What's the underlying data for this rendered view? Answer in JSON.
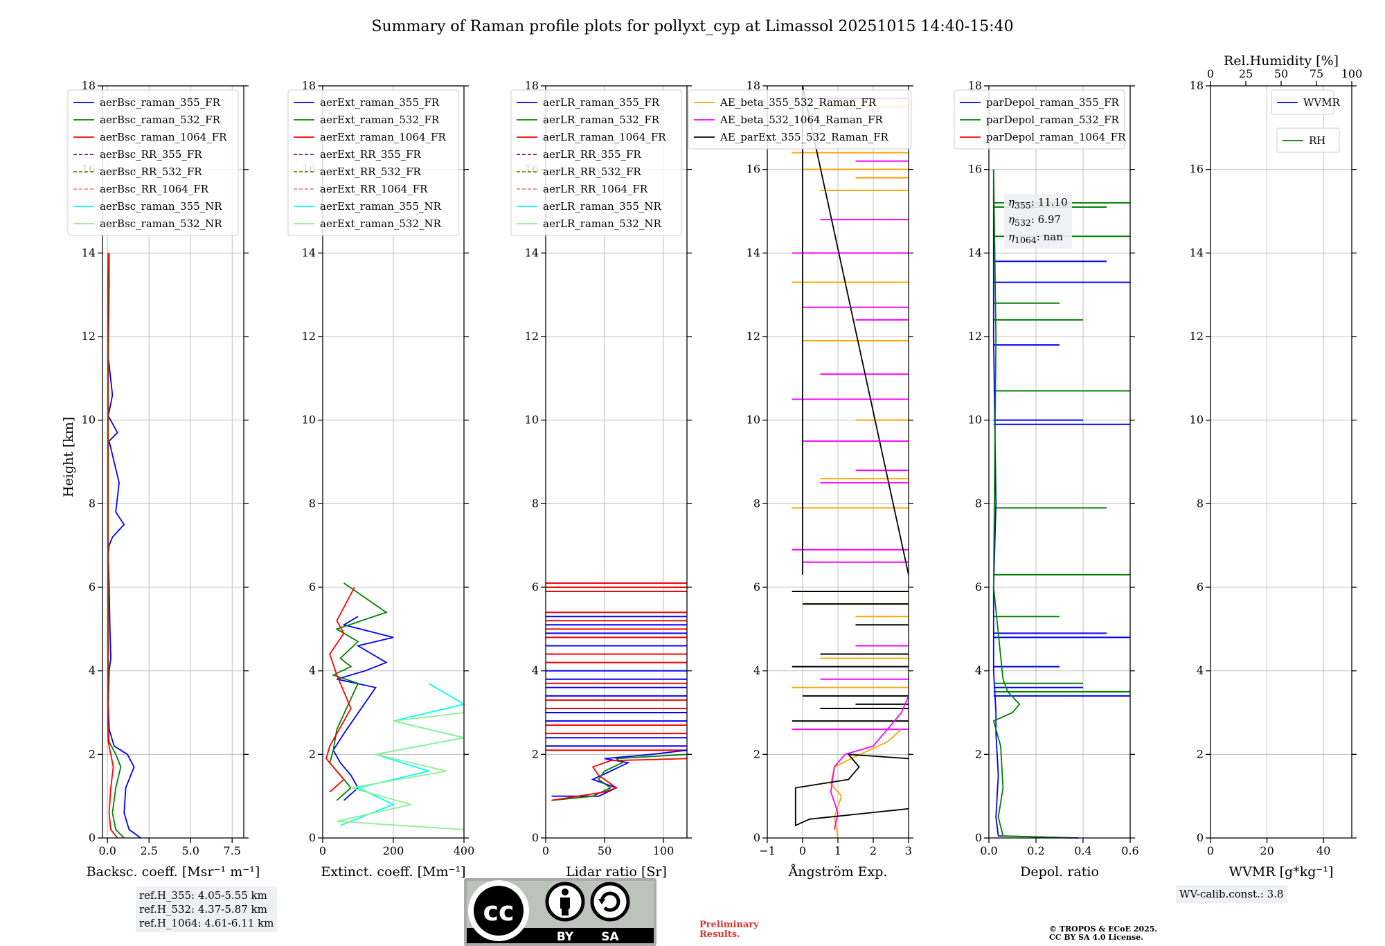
{
  "figure": {
    "title": "Summary of Raman profile plots for pollyxt_cyp at Limassol 20251015 14:40-15:40",
    "ylabel": "Height [km]",
    "ref_heights": [
      "ref.H_355: 4.05-5.55 km",
      "ref.H_532: 4.37-5.87 km",
      "ref.H_1064: 4.61-6.11 km"
    ],
    "wv_calib": "WV-calib.const.: 3.8",
    "preliminary": [
      "Preliminary",
      "Results."
    ],
    "copyright": [
      "© TROPOS & ECoE 2025.",
      "CC BY SA 4.0 License."
    ],
    "license_logo": {
      "cc": "cc",
      "by": "BY",
      "sa": "SA"
    },
    "eta": [
      {
        "label": "η",
        "sub": "355",
        "value": ": 11.10"
      },
      {
        "label": "η",
        "sub": "532",
        "value": ": 6.97"
      },
      {
        "label": "η",
        "sub": "1064",
        "value": ": nan"
      }
    ]
  },
  "colors": {
    "blue": "#0000ff",
    "green": "#008000",
    "red": "#ff0000",
    "purple": "#800080",
    "olive": "#808000",
    "salmon": "#fa8072",
    "cyan": "#00ffff",
    "lightgreen": "#90ee90",
    "orange": "#ffa500",
    "magenta": "#ff00ff",
    "black": "#000000"
  },
  "chart_data": [
    {
      "type": "line",
      "name": "backscatter",
      "xlabel": "Backsc. coeff. [Msr⁻¹ m⁻¹]",
      "ylabel": "Height [km]",
      "xlim": [
        -0.3,
        8.2
      ],
      "ylim": [
        0,
        18
      ],
      "xticks": [
        0,
        2.5,
        5,
        7.5
      ],
      "xticklabels": [
        "0.0",
        "2.5",
        "5.0",
        "7.5"
      ],
      "yticks": [
        0,
        2,
        4,
        6,
        8,
        10,
        12,
        14,
        16,
        18
      ],
      "yticklabels": [
        "0",
        "2",
        "4",
        "6",
        "8",
        "10",
        "12",
        "14",
        "16",
        "18"
      ],
      "legend": [
        "aerBsc_raman_355_FR",
        "aerBsc_raman_532_FR",
        "aerBsc_raman_1064_FR",
        "aerBsc_RR_355_FR",
        "aerBsc_RR_532_FR",
        "aerBsc_RR_1064_FR",
        "aerBsc_raman_355_NR",
        "aerBsc_raman_532_NR"
      ],
      "legend_colors": [
        "blue",
        "green",
        "red",
        "purple",
        "olive",
        "salmon",
        "cyan",
        "lightgreen"
      ],
      "legend_dashed": [
        false,
        false,
        false,
        true,
        true,
        true,
        false,
        false
      ],
      "series": [
        {
          "name": "aerBsc_raman_355_FR",
          "color": "blue",
          "x": [
            2.0,
            1.3,
            1.0,
            1.1,
            1.6,
            1.2,
            0.4,
            0.1,
            0.05,
            0.1,
            0.2,
            0.15,
            0.1,
            0.05,
            0.1,
            0.3,
            1.0,
            0.5,
            0.7,
            0.1,
            0.6,
            0.05,
            0.3,
            0.05,
            0.1,
            0.05
          ],
          "y": [
            0,
            0.2,
            0.6,
            1.2,
            1.7,
            2.0,
            2.2,
            2.6,
            3.2,
            4.0,
            4.3,
            5.0,
            6.0,
            6.8,
            7.0,
            7.2,
            7.5,
            7.8,
            8.5,
            9.5,
            9.7,
            10.1,
            10.6,
            11.5,
            13.3,
            14
          ]
        },
        {
          "name": "aerBsc_raman_532_FR",
          "color": "green",
          "x": [
            1.0,
            0.5,
            0.3,
            0.5,
            0.8,
            0.5,
            0.1,
            0.03,
            0.05,
            0.05,
            0.05,
            0.05,
            0.05,
            0.05,
            0.1,
            0.1
          ],
          "y": [
            0,
            0.2,
            0.6,
            1.2,
            1.7,
            2.0,
            2.3,
            2.7,
            4.0,
            6.0,
            8.0,
            10.0,
            11.7,
            12.5,
            13.4,
            14
          ]
        },
        {
          "name": "aerBsc_raman_1064_FR",
          "color": "red",
          "x": [
            0.6,
            0.2,
            0.1,
            0.2,
            0.35,
            0.2,
            0.05,
            0.02,
            0.02,
            0.02,
            0.02,
            0.05
          ],
          "y": [
            0,
            0.2,
            0.6,
            1.2,
            1.7,
            2.0,
            2.3,
            2.7,
            6.0,
            10.0,
            13.4,
            14
          ]
        }
      ]
    },
    {
      "type": "line",
      "name": "extinction",
      "xlabel": "Extinct. coeff. [Mm⁻¹]",
      "xlim": [
        0,
        400
      ],
      "ylim": [
        0,
        18
      ],
      "xticks": [
        0,
        200,
        400
      ],
      "xticklabels": [
        "0",
        "200",
        "400"
      ],
      "yticks": [
        0,
        2,
        4,
        6,
        8,
        10,
        12,
        14,
        16,
        18
      ],
      "yticklabels": [
        "0",
        "2",
        "4",
        "6",
        "8",
        "10",
        "12",
        "14",
        "16",
        "18"
      ],
      "legend": [
        "aerExt_raman_355_FR",
        "aerExt_raman_532_FR",
        "aerExt_raman_1064_FR",
        "aerExt_RR_355_FR",
        "aerExt_RR_532_FR",
        "aerExt_RR_1064_FR",
        "aerExt_raman_355_NR",
        "aerExt_raman_532_NR"
      ],
      "legend_colors": [
        "blue",
        "green",
        "red",
        "purple",
        "olive",
        "salmon",
        "cyan",
        "lightgreen"
      ],
      "legend_dashed": [
        false,
        false,
        false,
        true,
        true,
        true,
        false,
        false
      ],
      "series": [
        {
          "name": "aerExt_raman_355_FR",
          "color": "blue",
          "x": [
            60,
            100,
            80,
            50,
            30,
            60,
            150,
            40,
            120,
            180,
            100,
            200,
            60,
            100
          ],
          "y": [
            0.9,
            1.2,
            1.5,
            1.8,
            2.1,
            2.5,
            3.6,
            3.8,
            4.0,
            4.2,
            4.6,
            4.8,
            5.1,
            5.3
          ]
        },
        {
          "name": "aerExt_raman_532_FR",
          "color": "green",
          "x": [
            40,
            80,
            50,
            20,
            30,
            40,
            100,
            30,
            80,
            50,
            100,
            40,
            180,
            60
          ],
          "y": [
            0.9,
            1.2,
            1.5,
            1.8,
            2.1,
            2.6,
            3.7,
            3.9,
            4.1,
            4.3,
            4.7,
            5.0,
            5.4,
            6.1
          ]
        },
        {
          "name": "aerExt_raman_1064_FR",
          "color": "red",
          "x": [
            20,
            60,
            30,
            10,
            20,
            80,
            40,
            20,
            60,
            40,
            90
          ],
          "y": [
            1.1,
            1.4,
            1.7,
            1.9,
            2.2,
            3.1,
            3.9,
            4.4,
            4.9,
            5.2,
            6.0
          ]
        },
        {
          "name": "aerExt_raman_355_NR",
          "color": "cyan",
          "x": [
            50,
            200,
            100,
            300,
            150,
            400,
            200,
            400,
            300
          ],
          "y": [
            0.3,
            0.8,
            1.2,
            1.6,
            2.0,
            2.4,
            2.8,
            3.2,
            3.7
          ]
        },
        {
          "name": "aerExt_raman_532_NR",
          "color": "lightgreen",
          "x": [
            400,
            40,
            250,
            80,
            350,
            150,
            400,
            200,
            400
          ],
          "y": [
            0.2,
            0.4,
            0.8,
            1.2,
            1.6,
            2.0,
            2.4,
            2.8,
            3.0
          ]
        }
      ]
    },
    {
      "type": "line",
      "name": "lidar_ratio",
      "xlabel": "Lidar ratio [Sr]",
      "xlim": [
        0,
        120
      ],
      "ylim": [
        0,
        18
      ],
      "xticks": [
        0,
        50,
        100
      ],
      "xticklabels": [
        "0",
        "50",
        "100"
      ],
      "yticks": [
        0,
        2,
        4,
        6,
        8,
        10,
        12,
        14,
        16,
        18
      ],
      "yticklabels": [
        "0",
        "2",
        "4",
        "6",
        "8",
        "10",
        "12",
        "14",
        "16",
        "18"
      ],
      "legend": [
        "aerLR_raman_355_FR",
        "aerLR_raman_532_FR",
        "aerLR_raman_1064_FR",
        "aerLR_RR_355_FR",
        "aerLR_RR_532_FR",
        "aerLR_RR_1064_FR",
        "aerLR_raman_355_NR",
        "aerLR_raman_532_NR"
      ],
      "legend_colors": [
        "blue",
        "green",
        "red",
        "purple",
        "olive",
        "salmon",
        "cyan",
        "lightgreen"
      ],
      "legend_dashed": [
        false,
        false,
        false,
        true,
        true,
        true,
        false,
        false
      ],
      "series": [
        {
          "name": "aerLR_raman_355_FR",
          "color": "blue",
          "x": [
            5,
            45,
            60,
            40,
            55,
            70,
            50,
            90,
            120
          ],
          "y": [
            1.0,
            1.0,
            1.2,
            1.4,
            1.6,
            1.8,
            1.9,
            2.0,
            2.1
          ]
        },
        {
          "name": "aerLR_raman_532_FR",
          "color": "green",
          "x": [
            5,
            40,
            55,
            45,
            50,
            65,
            60,
            120
          ],
          "y": [
            0.9,
            1.0,
            1.2,
            1.4,
            1.6,
            1.8,
            1.9,
            2.0
          ]
        },
        {
          "name": "aerLR_raman_1064_FR",
          "color": "red",
          "x": [
            5,
            50,
            60,
            45,
            40,
            55,
            120
          ],
          "y": [
            0.9,
            1.1,
            1.2,
            1.5,
            1.7,
            1.85,
            1.9
          ]
        }
      ],
      "band_levels_km": {
        "blue": [
          2.2,
          2.4,
          2.8,
          3.0,
          3.4,
          3.6,
          3.8,
          4.0,
          4.6,
          4.9,
          5.1,
          5.3
        ],
        "red": [
          2.1,
          2.5,
          2.7,
          3.1,
          3.3,
          3.7,
          4.2,
          4.4,
          4.8,
          5.0,
          5.2,
          5.4,
          5.9,
          6.0,
          6.1
        ]
      }
    },
    {
      "type": "line",
      "name": "angstrom",
      "xlabel": "Ångström Exp.",
      "xlim": [
        -1,
        3
      ],
      "ylim": [
        0,
        18
      ],
      "xticks": [
        -1,
        0,
        1,
        2,
        3
      ],
      "xticklabels": [
        "−1",
        "0",
        "1",
        "2",
        "3"
      ],
      "yticks": [
        0,
        2,
        4,
        6,
        8,
        10,
        12,
        14,
        16,
        18
      ],
      "yticklabels": [
        "0",
        "2",
        "4",
        "6",
        "8",
        "10",
        "12",
        "14",
        "16",
        "18"
      ],
      "legend": [
        "AE_beta_355_532_Raman_FR",
        "AE_beta_532_1064_Raman_FR",
        "AE_parExt_355_532_Raman_FR"
      ],
      "legend_colors": [
        "orange",
        "magenta",
        "black"
      ],
      "legend_dashed": [
        false,
        false,
        false
      ],
      "series": [
        {
          "name": "AE_beta_355_532_Raman_FR",
          "color": "orange",
          "x": [
            1.0,
            0.9,
            1.1,
            0.8,
            0.9,
            1.5,
            2.4,
            2.8
          ],
          "y": [
            0.0,
            0.5,
            1.0,
            1.3,
            1.7,
            1.95,
            2.3,
            2.6
          ]
        },
        {
          "name": "AE_beta_532_1064_Raman_FR",
          "color": "magenta",
          "x": [
            0.9,
            1.0,
            0.8,
            0.9,
            1.2,
            2.0,
            2.8,
            3.0
          ],
          "y": [
            0.2,
            0.6,
            1.1,
            1.7,
            2.0,
            2.2,
            3.0,
            3.4
          ]
        },
        {
          "name": "AE_parExt_355_532_Raman_FR",
          "color": "black",
          "x": [
            3.0,
            0.2,
            -0.2,
            -0.2,
            1.3,
            1.6,
            1.3,
            3.0
          ],
          "y": [
            0.7,
            0.45,
            0.3,
            1.2,
            1.4,
            1.7,
            2.0,
            1.9
          ]
        },
        {
          "name": "AE_parExt_355_532_Raman_FR_upper",
          "color": "black",
          "x": [
            0,
            0,
            3.0
          ],
          "y": [
            6.3,
            18,
            6.3
          ]
        }
      ],
      "spike_levels_km": {
        "orange": [
          3.6,
          4.3,
          5.3,
          5.6,
          7.9,
          8.6,
          10.0,
          11.9,
          13.3,
          15.5,
          15.8,
          16.0,
          16.4,
          17.5
        ],
        "magenta": [
          2.6,
          3.8,
          4.6,
          6.6,
          6.9,
          8.5,
          8.8,
          9.5,
          10.5,
          11.1,
          12.4,
          12.7,
          14.0,
          14.8,
          16.2,
          17.7
        ],
        "black": [
          2.8,
          3.1,
          3.2,
          3.4,
          4.1,
          4.4,
          5.1,
          5.6,
          5.9
        ]
      }
    },
    {
      "type": "line",
      "name": "depolarization",
      "xlabel": "Depol. ratio",
      "xlim": [
        0,
        0.6
      ],
      "ylim": [
        0,
        18
      ],
      "xticks": [
        0,
        0.2,
        0.4,
        0.6
      ],
      "xticklabels": [
        "0.0",
        "0.2",
        "0.4",
        "0.6"
      ],
      "yticks": [
        0,
        2,
        4,
        6,
        8,
        10,
        12,
        14,
        16,
        18
      ],
      "yticklabels": [
        "0",
        "2",
        "4",
        "6",
        "8",
        "10",
        "12",
        "14",
        "16",
        "18"
      ],
      "legend": [
        "parDepol_raman_355_FR",
        "parDepol_raman_532_FR",
        "parDepol_raman_1064_FR"
      ],
      "legend_colors": [
        "blue",
        "green",
        "red"
      ],
      "legend_dashed": [
        false,
        false,
        false
      ],
      "series": [
        {
          "name": "parDepol_raman_355_FR",
          "color": "blue",
          "x": [
            0.38,
            0.04,
            0.03,
            0.04,
            0.03,
            0.03,
            0.02,
            0.02,
            0.03,
            0.02,
            0.02
          ],
          "y": [
            0.0,
            0.05,
            0.5,
            1.5,
            2.5,
            3.0,
            4.0,
            6.0,
            8.0,
            12.0,
            16.0
          ]
        },
        {
          "name": "parDepol_raman_532_FR",
          "color": "green",
          "x": [
            0.35,
            0.06,
            0.04,
            0.06,
            0.05,
            0.02,
            0.1,
            0.13,
            0.08,
            0.06,
            0.02,
            0.03,
            0.02
          ],
          "y": [
            0.0,
            0.05,
            0.5,
            1.2,
            2.2,
            2.8,
            3.0,
            3.2,
            3.5,
            3.8,
            6.0,
            12.0,
            16.0
          ]
        }
      ],
      "spike_levels_km": {
        "blue": [
          3.4,
          3.6,
          4.1,
          4.8,
          4.9,
          9.9,
          10.0,
          11.8,
          13.3,
          13.8
        ],
        "green": [
          3.5,
          3.7,
          5.3,
          6.3,
          7.9,
          10.7,
          12.4,
          12.8,
          14.4,
          15.1,
          15.2
        ]
      }
    },
    {
      "type": "line",
      "name": "water_vapor",
      "xlabel": "WVMR [g*kg⁻¹]",
      "xlabel_top": "Rel.Humidity [%]",
      "xlim": [
        0,
        50
      ],
      "ylim": [
        0,
        18
      ],
      "xlim_top": [
        0,
        100
      ],
      "xticks": [
        0,
        20,
        40
      ],
      "xticklabels": [
        "0",
        "20",
        "40"
      ],
      "xticks_top": [
        0,
        25,
        50,
        75,
        100
      ],
      "xticklabels_top": [
        "0",
        "25",
        "50",
        "75",
        "100"
      ],
      "yticks": [
        0,
        2,
        4,
        6,
        8,
        10,
        12,
        14,
        16,
        18
      ],
      "yticklabels": [
        "0",
        "2",
        "4",
        "6",
        "8",
        "10",
        "12",
        "14",
        "16",
        "18"
      ],
      "legend": [
        "WVMR"
      ],
      "legend_colors": [
        "blue"
      ],
      "legend_dashed": [
        false
      ],
      "legend2": [
        "RH"
      ],
      "legend2_colors": [
        "green"
      ],
      "series": []
    }
  ]
}
